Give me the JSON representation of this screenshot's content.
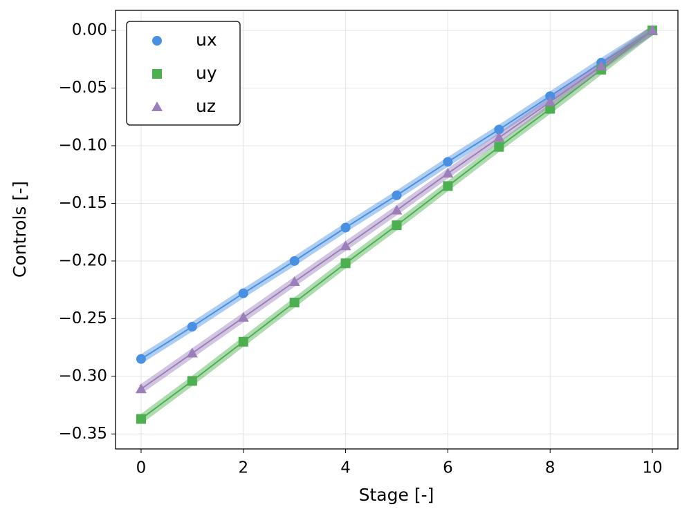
{
  "chart_data": {
    "type": "scatter",
    "x_label": "Stage [-]",
    "y_label": "Controls [-]",
    "x": [
      0,
      1,
      2,
      3,
      4,
      5,
      6,
      7,
      8,
      9,
      10
    ],
    "series": [
      {
        "name": "ux",
        "color": "#4a90e2",
        "marker": "circle",
        "values": [
          -0.285,
          -0.257,
          -0.228,
          -0.2,
          -0.171,
          -0.143,
          -0.114,
          -0.086,
          -0.057,
          -0.028,
          0
        ]
      },
      {
        "name": "uy",
        "color": "#4caf50",
        "marker": "square",
        "values": [
          -0.337,
          -0.304,
          -0.27,
          -0.236,
          -0.202,
          -0.169,
          -0.135,
          -0.101,
          -0.068,
          -0.034,
          0
        ]
      },
      {
        "name": "uz",
        "color": "#9c7fba",
        "marker": "triangle",
        "values": [
          -0.311,
          -0.28,
          -0.249,
          -0.218,
          -0.187,
          -0.156,
          -0.124,
          -0.093,
          -0.062,
          -0.031,
          0
        ]
      }
    ],
    "xlim": [
      -0.5,
      10.5
    ],
    "ylim": [
      -0.363,
      0.0174
    ],
    "xticks": [
      0,
      2,
      4,
      6,
      8,
      10
    ],
    "yticks": [
      {
        "value": 0,
        "label": "0.00"
      },
      {
        "value": -0.05,
        "label": "−0.05"
      },
      {
        "value": -0.1,
        "label": "−0.10"
      },
      {
        "value": -0.15,
        "label": "−0.15"
      },
      {
        "value": -0.2,
        "label": "−0.20"
      },
      {
        "value": -0.25,
        "label": "−0.25"
      },
      {
        "value": -0.3,
        "label": "−0.30"
      },
      {
        "value": -0.35,
        "label": "−0.35"
      }
    ],
    "grid": true,
    "legend": "upper left"
  }
}
